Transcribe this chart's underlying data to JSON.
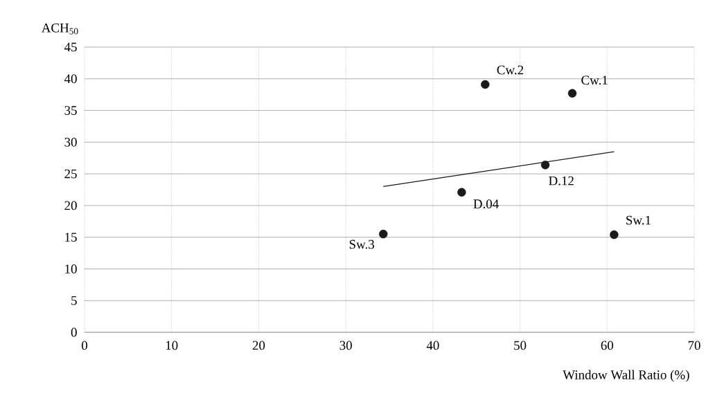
{
  "chart_data": {
    "type": "scatter",
    "xlabel": "Window Wall Ratio (%)",
    "ylabel": "ACH$_{50}$",
    "xlim": [
      0,
      70
    ],
    "xticks": [
      0,
      10,
      20,
      30,
      40,
      50,
      60,
      70
    ],
    "ylim": [
      0,
      45
    ],
    "yticks": [
      0,
      5,
      10,
      15,
      20,
      25,
      30,
      35,
      40,
      45
    ],
    "grid": true,
    "series": [
      {
        "color": "#1a1a1a",
        "marker": "circle",
        "x": [
          34.3,
          43.3,
          46.0,
          52.9,
          56.0,
          60.8
        ],
        "values": [
          15.5,
          22.1,
          39.1,
          26.4,
          37.7,
          15.4
        ]
      },
      {
        "type": "line",
        "color": "#1a1a1a",
        "marker": "none",
        "line_style": "solid",
        "x": [
          34.3,
          60.8
        ],
        "values": [
          23.0,
          28.5
        ]
      }
    ],
    "annotations": [
      {
        "text": "Sw.3",
        "x": 34.3,
        "y": 15.5
      },
      {
        "text": "D.04",
        "x": 43.3,
        "y": 22.1
      },
      {
        "text": "Cw.2",
        "x": 46.0,
        "y": 39.1
      },
      {
        "text": "D.12",
        "x": 52.9,
        "y": 26.4
      },
      {
        "text": "Cw.1",
        "x": 56.0,
        "y": 37.7
      },
      {
        "text": "Sw.1",
        "x": 60.8,
        "y": 15.4
      }
    ]
  }
}
